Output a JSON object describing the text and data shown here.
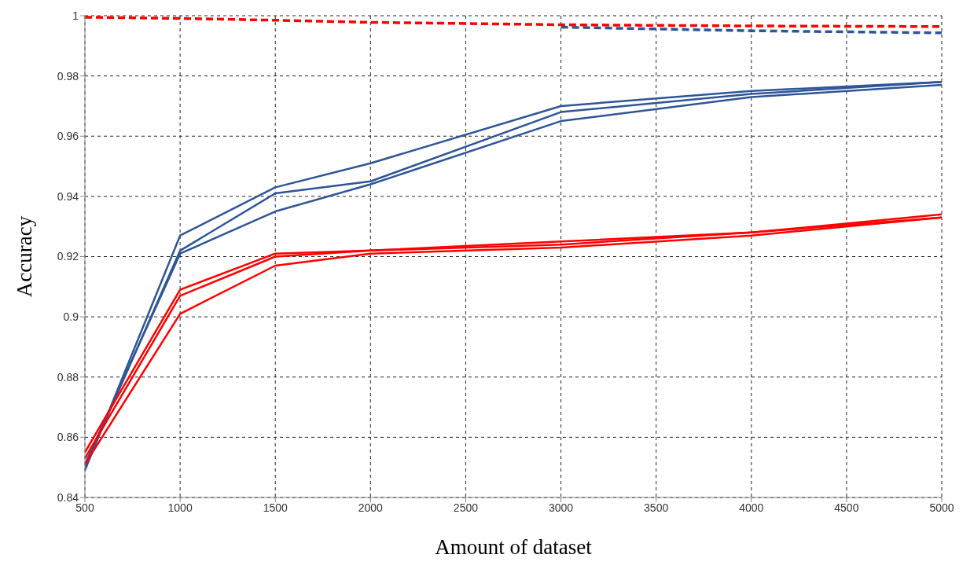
{
  "chart_data": {
    "type": "line",
    "xlabel": "Amount of dataset",
    "ylabel": "Accuracy",
    "x": [
      500,
      1000,
      1500,
      2000,
      3000,
      4000,
      5000
    ],
    "series": [
      {
        "color": "#2f5597",
        "line_style": "solid",
        "values": [
          0.849,
          0.927,
          0.943,
          0.951,
          0.97,
          0.975,
          0.978
        ]
      },
      {
        "color": "#2f5597",
        "line_style": "solid",
        "values": [
          0.85,
          0.922,
          0.941,
          0.945,
          0.968,
          0.974,
          0.978
        ]
      },
      {
        "color": "#2f5597",
        "line_style": "solid",
        "values": [
          0.851,
          0.921,
          0.935,
          0.944,
          0.965,
          0.973,
          0.977
        ]
      },
      {
        "color": "#ff0000",
        "line_style": "solid",
        "values": [
          0.855,
          0.909,
          0.921,
          0.922,
          0.925,
          0.928,
          0.934
        ]
      },
      {
        "color": "#ff0000",
        "line_style": "solid",
        "values": [
          0.853,
          0.907,
          0.92,
          0.922,
          0.924,
          0.928,
          0.933
        ]
      },
      {
        "color": "#ff0000",
        "line_style": "solid",
        "values": [
          0.851,
          0.901,
          0.917,
          0.921,
          0.923,
          0.927,
          0.933
        ]
      },
      {
        "color": "#2f5597",
        "line_style": "dashed",
        "values": [
          null,
          null,
          null,
          null,
          0.9962,
          0.995,
          0.9943
        ]
      },
      {
        "color": "#ff0000",
        "line_style": "dashed",
        "values": [
          0.9995,
          0.9991,
          0.9985,
          0.9978,
          0.997,
          0.9966,
          0.9964
        ]
      }
    ],
    "xlim": [
      500,
      5000
    ],
    "xticks": [
      500,
      1000,
      1500,
      2000,
      2500,
      3000,
      3500,
      4000,
      4500,
      5000
    ],
    "ylim": [
      0.84,
      1
    ],
    "yticks": [
      0.84,
      0.86,
      0.88,
      0.9,
      0.92,
      0.94,
      0.96,
      0.98,
      1
    ],
    "grid": true,
    "legend": false,
    "marker": "none"
  }
}
